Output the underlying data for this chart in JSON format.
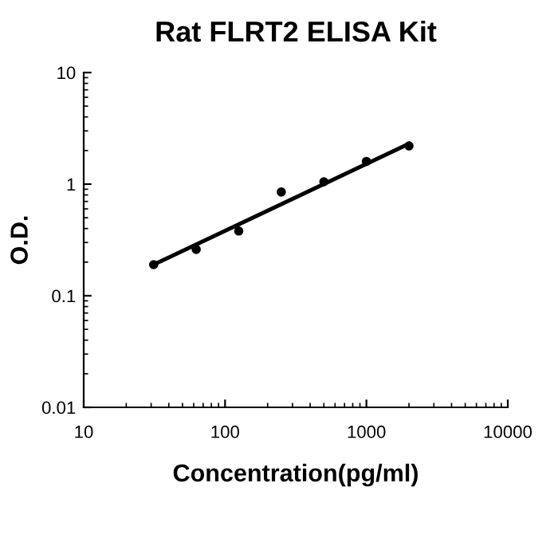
{
  "chart_data": {
    "type": "scatter",
    "title": "Rat FLRT2 ELISA Kit",
    "xlabel": "Concentration(pg/ml)",
    "ylabel": "O.D.",
    "log": "xy",
    "grid": false,
    "series": [
      {
        "color": "#000000",
        "marker": "circle",
        "x": [
          31.25,
          62.5,
          125,
          250,
          500,
          1000,
          2000
        ],
        "values": [
          0.19,
          0.26,
          0.38,
          0.85,
          1.05,
          1.6,
          2.2
        ]
      },
      {
        "type": "line",
        "marker": "none",
        "color": "#000000",
        "x": [
          31.25,
          2000
        ],
        "values": [
          0.19,
          2.3
        ]
      }
    ],
    "xlim": [
      10,
      10000
    ],
    "ylim": [
      0.01,
      10
    ],
    "xticks": [
      10,
      100,
      1000,
      10000
    ],
    "yticks": [
      0.01,
      0.1,
      1,
      10
    ]
  }
}
